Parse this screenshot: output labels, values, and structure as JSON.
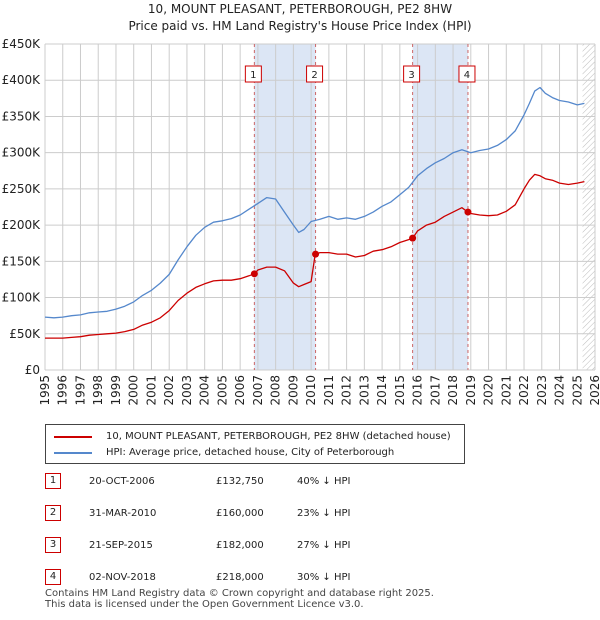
{
  "title_line1": "10, MOUNT PLEASANT, PETERBOROUGH, PE2 8HW",
  "title_line2": "Price paid vs. HM Land Registry's House Price Index (HPI)",
  "colors": {
    "property": "#cc0000",
    "hpi": "#5588cc",
    "shade": "#dce6f5",
    "grid": "#cccccc",
    "marker_border": "#cc0000"
  },
  "chart_data": {
    "type": "line",
    "title": "Price paid vs. HM Land Registry's House Price Index (HPI)",
    "xlabel": "",
    "ylabel": "",
    "xlim": [
      1995,
      2026
    ],
    "ylim": [
      0,
      450000
    ],
    "y_ticks": [
      {
        "value": 0,
        "label": "£0"
      },
      {
        "value": 50000,
        "label": "£50K"
      },
      {
        "value": 100000,
        "label": "£100K"
      },
      {
        "value": 150000,
        "label": "£150K"
      },
      {
        "value": 200000,
        "label": "£200K"
      },
      {
        "value": 250000,
        "label": "£250K"
      },
      {
        "value": 300000,
        "label": "£300K"
      },
      {
        "value": 350000,
        "label": "£350K"
      },
      {
        "value": 400000,
        "label": "£400K"
      },
      {
        "value": 450000,
        "label": "£450K"
      }
    ],
    "x_ticks": [
      "1995",
      "1996",
      "1997",
      "1998",
      "1999",
      "2000",
      "2001",
      "2002",
      "2003",
      "2004",
      "2005",
      "2006",
      "2007",
      "2008",
      "2009",
      "2010",
      "2011",
      "2012",
      "2013",
      "2014",
      "2015",
      "2016",
      "2017",
      "2018",
      "2019",
      "2020",
      "2021",
      "2022",
      "2023",
      "2024",
      "2025",
      "2026"
    ],
    "grid": true,
    "shaded_ranges": [
      [
        2006.8,
        2010.25
      ],
      [
        2015.72,
        2018.84
      ]
    ],
    "future_hatch_from": 2025.3,
    "sale_markers": [
      {
        "label": "1",
        "x": 2006.8,
        "y": 132750
      },
      {
        "label": "2",
        "x": 2010.25,
        "y": 160000
      },
      {
        "label": "3",
        "x": 2015.72,
        "y": 182000
      },
      {
        "label": "4",
        "x": 2018.84,
        "y": 218000
      }
    ],
    "series": [
      {
        "name": "HPI: Average price, detached house, City of Peterborough",
        "color": "#5588cc",
        "x": [
          1995.0,
          1995.5,
          1996.0,
          1996.5,
          1997.0,
          1997.5,
          1998.0,
          1998.5,
          1999.0,
          1999.5,
          2000.0,
          2000.5,
          2001.0,
          2001.5,
          2002.0,
          2002.5,
          2003.0,
          2003.5,
          2004.0,
          2004.5,
          2005.0,
          2005.5,
          2006.0,
          2006.5,
          2007.0,
          2007.5,
          2008.0,
          2008.5,
          2009.0,
          2009.3,
          2009.6,
          2010.0,
          2010.5,
          2011.0,
          2011.5,
          2012.0,
          2012.5,
          2013.0,
          2013.5,
          2014.0,
          2014.5,
          2015.0,
          2015.5,
          2016.0,
          2016.5,
          2017.0,
          2017.5,
          2018.0,
          2018.5,
          2019.0,
          2019.5,
          2020.0,
          2020.5,
          2021.0,
          2021.5,
          2022.0,
          2022.3,
          2022.6,
          2022.9,
          2023.2,
          2023.6,
          2024.0,
          2024.5,
          2025.0,
          2025.4
        ],
        "values": [
          73000,
          72000,
          73000,
          75000,
          76000,
          79000,
          80000,
          81000,
          84000,
          88000,
          94000,
          103000,
          110000,
          120000,
          132000,
          152000,
          170000,
          186000,
          197000,
          204000,
          206000,
          209000,
          214000,
          222000,
          230000,
          238000,
          236000,
          218000,
          200000,
          190000,
          194000,
          205000,
          208000,
          212000,
          208000,
          210000,
          208000,
          212000,
          218000,
          226000,
          232000,
          242000,
          252000,
          268000,
          278000,
          286000,
          292000,
          300000,
          304000,
          300000,
          303000,
          305000,
          310000,
          318000,
          330000,
          352000,
          368000,
          385000,
          390000,
          382000,
          376000,
          372000,
          370000,
          366000,
          368000
        ]
      },
      {
        "name": "10, MOUNT PLEASANT, PETERBOROUGH, PE2 8HW (detached house)",
        "color": "#cc0000",
        "x": [
          1995.0,
          1995.5,
          1996.0,
          1996.5,
          1997.0,
          1997.5,
          1998.0,
          1998.5,
          1999.0,
          1999.5,
          2000.0,
          2000.5,
          2001.0,
          2001.5,
          2002.0,
          2002.5,
          2003.0,
          2003.5,
          2004.0,
          2004.5,
          2005.0,
          2005.5,
          2006.0,
          2006.5,
          2006.8,
          2007.0,
          2007.5,
          2008.0,
          2008.5,
          2009.0,
          2009.3,
          2009.6,
          2010.0,
          2010.2,
          2010.25,
          2010.5,
          2011.0,
          2011.5,
          2012.0,
          2012.5,
          2013.0,
          2013.5,
          2014.0,
          2014.5,
          2015.0,
          2015.5,
          2015.72,
          2016.0,
          2016.5,
          2017.0,
          2017.5,
          2018.0,
          2018.5,
          2018.84,
          2019.0,
          2019.5,
          2020.0,
          2020.5,
          2021.0,
          2021.5,
          2022.0,
          2022.3,
          2022.6,
          2022.9,
          2023.2,
          2023.6,
          2024.0,
          2024.5,
          2025.0,
          2025.4
        ],
        "values": [
          44000,
          44000,
          44000,
          45000,
          46000,
          48000,
          49000,
          50000,
          51000,
          53000,
          56000,
          62000,
          66000,
          72000,
          82000,
          96000,
          106000,
          114000,
          119000,
          123000,
          124000,
          124000,
          126000,
          130000,
          132750,
          138000,
          142000,
          142000,
          137000,
          120000,
          115000,
          118000,
          122000,
          155000,
          160000,
          162000,
          162000,
          160000,
          160000,
          156000,
          158000,
          164000,
          166000,
          170000,
          176000,
          180000,
          182000,
          192000,
          200000,
          204000,
          212000,
          218000,
          224000,
          218000,
          216000,
          214000,
          213000,
          214000,
          219000,
          228000,
          250000,
          262000,
          270000,
          268000,
          264000,
          262000,
          258000,
          256000,
          258000,
          260000
        ]
      }
    ]
  },
  "legend": {
    "property_label": "10, MOUNT PLEASANT, PETERBOROUGH, PE2 8HW (detached house)",
    "hpi_label": "HPI: Average price, detached house, City of Peterborough"
  },
  "sales": [
    {
      "num": "1",
      "date": "20-OCT-2006",
      "price": "£132,750",
      "hpi": "40% ↓ HPI"
    },
    {
      "num": "2",
      "date": "31-MAR-2010",
      "price": "£160,000",
      "hpi": "23% ↓ HPI"
    },
    {
      "num": "3",
      "date": "21-SEP-2015",
      "price": "£182,000",
      "hpi": "27% ↓ HPI"
    },
    {
      "num": "4",
      "date": "02-NOV-2018",
      "price": "£218,000",
      "hpi": "30% ↓ HPI"
    }
  ],
  "footer_line1": "Contains HM Land Registry data © Crown copyright and database right 2025.",
  "footer_line2": "This data is licensed under the Open Government Licence v3.0."
}
